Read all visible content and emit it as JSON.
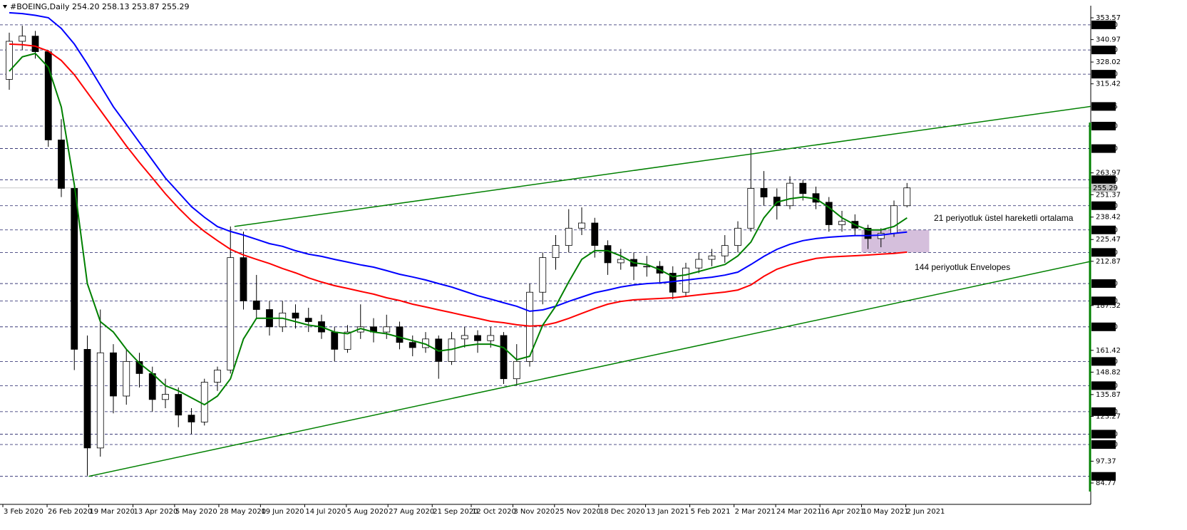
{
  "header": {
    "symbol": "#BOEING,Daily",
    "ohlc": [
      "254.20",
      "258.13",
      "253.87",
      "255.29"
    ]
  },
  "chart_data": {
    "type": "candlestick",
    "x": [
      "2020-02-03",
      "2020-02-10",
      "2020-02-17",
      "2020-02-24",
      "2020-03-02",
      "2020-03-09",
      "2020-03-16",
      "2020-03-23",
      "2020-03-30",
      "2020-04-06",
      "2020-04-13",
      "2020-04-20",
      "2020-04-27",
      "2020-05-04",
      "2020-05-11",
      "2020-05-18",
      "2020-05-25",
      "2020-06-01",
      "2020-06-08",
      "2020-06-15",
      "2020-06-22",
      "2020-06-29",
      "2020-07-06",
      "2020-07-13",
      "2020-07-20",
      "2020-07-27",
      "2020-08-03",
      "2020-08-10",
      "2020-08-17",
      "2020-08-24",
      "2020-08-31",
      "2020-09-07",
      "2020-09-14",
      "2020-09-21",
      "2020-09-28",
      "2020-10-05",
      "2020-10-12",
      "2020-10-19",
      "2020-10-26",
      "2020-11-02",
      "2020-11-09",
      "2020-11-16",
      "2020-11-23",
      "2020-11-30",
      "2020-12-07",
      "2020-12-14",
      "2020-12-21",
      "2020-12-28",
      "2021-01-04",
      "2021-01-11",
      "2021-01-18",
      "2021-01-25",
      "2021-02-01",
      "2021-02-08",
      "2021-02-15",
      "2021-02-22",
      "2021-03-01",
      "2021-03-08",
      "2021-03-15",
      "2021-03-22",
      "2021-03-29",
      "2021-04-05",
      "2021-04-12",
      "2021-04-19",
      "2021-04-26",
      "2021-05-03",
      "2021-05-10",
      "2021-05-17",
      "2021-05-24",
      "2021-05-31"
    ],
    "open": [
      318,
      340,
      343,
      334,
      283,
      255,
      162,
      105,
      160,
      135,
      155,
      148,
      133,
      136,
      124,
      120,
      143,
      150,
      215,
      190,
      185,
      175,
      183,
      180,
      178,
      172,
      162,
      172,
      175,
      172,
      175,
      166,
      163,
      168,
      155,
      168,
      170,
      167,
      170,
      145,
      155,
      195,
      215,
      222,
      232,
      235,
      222,
      212,
      214,
      210,
      210,
      206,
      195,
      209,
      214,
      216,
      222,
      232,
      255,
      250,
      245,
      258,
      252,
      247,
      234,
      236,
      232,
      226,
      229,
      245
    ],
    "high": [
      345,
      349,
      346,
      335,
      295,
      258,
      170,
      185,
      165,
      162,
      160,
      152,
      145,
      140,
      128,
      145,
      152,
      233,
      230,
      205,
      190,
      190,
      188,
      186,
      182,
      175,
      176,
      188,
      180,
      182,
      178,
      170,
      172,
      170,
      172,
      175,
      173,
      175,
      172,
      165,
      200,
      218,
      228,
      243,
      244,
      238,
      225,
      220,
      218,
      216,
      213,
      210,
      212,
      218,
      220,
      228,
      236,
      278,
      265,
      255,
      262,
      260,
      256,
      250,
      242,
      240,
      234,
      232,
      248,
      258.13
    ],
    "low": [
      312,
      335,
      330,
      279,
      250,
      150,
      89,
      100,
      125,
      130,
      140,
      126,
      128,
      117,
      113,
      118,
      138,
      148,
      185,
      180,
      170,
      172,
      174,
      172,
      168,
      155,
      160,
      168,
      166,
      168,
      162,
      158,
      160,
      145,
      153,
      163,
      160,
      163,
      142,
      141,
      152,
      188,
      208,
      218,
      228,
      215,
      205,
      208,
      202,
      204,
      200,
      191,
      193,
      206,
      210,
      212,
      218,
      230,
      245,
      237,
      243,
      248,
      243,
      230,
      230,
      228,
      220,
      221,
      227,
      244
    ],
    "close": [
      340,
      343,
      334,
      283,
      255,
      162,
      105,
      160,
      135,
      155,
      148,
      133,
      136,
      124,
      120,
      143,
      150,
      215,
      190,
      185,
      175,
      183,
      180,
      178,
      172,
      162,
      172,
      175,
      172,
      175,
      166,
      163,
      168,
      155,
      168,
      170,
      167,
      170,
      145,
      155,
      195,
      215,
      222,
      232,
      235,
      222,
      212,
      214,
      210,
      210,
      206,
      195,
      209,
      214,
      216,
      222,
      232,
      255,
      250,
      245,
      258,
      252,
      247,
      234,
      236,
      232,
      226,
      229,
      245,
      255.29
    ],
    "up_color": "#ffffff",
    "down_color": "#000000",
    "lines": [
      {
        "color": "#0000ff",
        "values": [
          356.5,
          356,
          355,
          353.6,
          347.4,
          338.4,
          326.9,
          314.5,
          302.2,
          291.9,
          281.6,
          271.3,
          261,
          252.7,
          244.5,
          238.3,
          232.9,
          230.1,
          228,
          225.6,
          223.1,
          221.5,
          219,
          217,
          215.7,
          214,
          212.4,
          210.8,
          209.5,
          207.5,
          205.4,
          203.8,
          202.1,
          200,
          198,
          195.5,
          193,
          191,
          188.9,
          186.9,
          184,
          184.8,
          186.9,
          189.7,
          192.2,
          194.7,
          196.3,
          198,
          199.2,
          200,
          200.4,
          201.2,
          202,
          202.9,
          203.7,
          204.9,
          206.6,
          211,
          215.7,
          219.8,
          222.7,
          224.8,
          226,
          226.8,
          227.3,
          227.7,
          227.7,
          228,
          229,
          229.8
        ]
      },
      {
        "color": "#ff0000",
        "values": [
          338.4,
          338,
          337.2,
          334.3,
          328.9,
          320.7,
          310.4,
          300.1,
          289.8,
          279.5,
          270,
          261,
          251.9,
          243.7,
          236.3,
          230.1,
          224.8,
          219.8,
          216.5,
          214,
          211.6,
          208.7,
          206.2,
          203.3,
          200.9,
          198.8,
          197.2,
          195.5,
          193.9,
          191.8,
          190.2,
          188.1,
          186.5,
          184.8,
          183.2,
          181.5,
          179.9,
          178.2,
          177.4,
          176.2,
          175.4,
          175.8,
          177.4,
          179.9,
          182.8,
          185.6,
          188.1,
          189.7,
          190.6,
          191,
          191.4,
          191.8,
          192.6,
          193.5,
          194.3,
          195.1,
          196.3,
          199.2,
          204.2,
          208.3,
          210.8,
          212.8,
          214.5,
          215.3,
          215.7,
          216.1,
          216.5,
          217,
          217.4,
          218.2
        ]
      },
      {
        "color": "#008000",
        "values": [
          322.7,
          331,
          333,
          325,
          302,
          257,
          200,
          178,
          172,
          162,
          154,
          148,
          141,
          138,
          134,
          130,
          135,
          145,
          168,
          180,
          180,
          180,
          178,
          176,
          175,
          172,
          171,
          174,
          172,
          171,
          169,
          167,
          165,
          161,
          162,
          164,
          165,
          165,
          163,
          156,
          158,
          176,
          187,
          201,
          214,
          219,
          219,
          216,
          212,
          211,
          208,
          204,
          205,
          207,
          209,
          211,
          216,
          224,
          238,
          247,
          249,
          250,
          249,
          244,
          238,
          234,
          231,
          231,
          233,
          238
        ]
      }
    ],
    "trendlines": [
      {
        "color": "#008000",
        "x": [
          "2020-06-05",
          "2021-09-09"
        ],
        "y": [
          233,
          302.35
        ]
      },
      {
        "color": "#008000",
        "x": [
          "2020-03-19",
          "2021-09-09"
        ],
        "y": [
          88.6,
          212.8
        ]
      }
    ],
    "zone": {
      "color": "#d5bfdc",
      "x": [
        "2021-05-10",
        "2021-06-15"
      ],
      "y": [
        218,
        231
      ]
    },
    "levels": [
      {
        "value": 349.5,
        "label": "349.50"
      },
      {
        "value": 335,
        "label": "335.00"
      },
      {
        "value": 321,
        "label": "321.00"
      },
      {
        "value": 291,
        "label": "291.00"
      },
      {
        "value": 278,
        "label": "278.00"
      },
      {
        "value": 260,
        "label": "260.00"
      },
      {
        "value": 245,
        "label": "245.00"
      },
      {
        "value": 231,
        "label": "231.00"
      },
      {
        "value": 218,
        "label": "218.00"
      },
      {
        "value": 200,
        "label": "200.00"
      },
      {
        "value": 190,
        "label": "190.00"
      },
      {
        "value": 175,
        "label": "175.00"
      },
      {
        "value": 155,
        "label": "155.00"
      },
      {
        "value": 141,
        "label": "141.00"
      },
      {
        "value": 126,
        "label": "126.00"
      },
      {
        "value": 113,
        "label": "113.00"
      },
      {
        "value": 107,
        "label": "107.00"
      },
      {
        "value": 88.6,
        "label": "88.60"
      }
    ],
    "last_price": 255.29,
    "ylim": [
      84.77,
      353.57
    ],
    "yticks": [
      353.57,
      340.97,
      328.02,
      315.42,
      263.97,
      251.37,
      238.42,
      225.47,
      212.87,
      187.32,
      161.42,
      148.82,
      135.87,
      123.27,
      97.37,
      84.77
    ],
    "xticks": [
      "3 Feb 2020",
      "26 Feb 2020",
      "19 Mar 2020",
      "13 Apr 2020",
      "5 May 2020",
      "28 May 2020",
      "19 Jun 2020",
      "14 Jul 2020",
      "5 Aug 2020",
      "27 Aug 2020",
      "21 Sep 2020",
      "12 Oct 2020",
      "3 Nov 2020",
      "25 Nov 2020",
      "18 Dec 2020",
      "13 Jan 2021",
      "5 Feb 2021",
      "2 Mar 2021",
      "24 Mar 2021",
      "16 Apr 2021",
      "10 May 2021",
      "2 Jun 2021"
    ],
    "annotations": [
      {
        "text": "21 periyotluk üstel hareketli ortalama",
        "color": "#2e8b2e"
      },
      {
        "text": "144 periyotluk Envelopes",
        "color": "#3333cc"
      }
    ]
  }
}
